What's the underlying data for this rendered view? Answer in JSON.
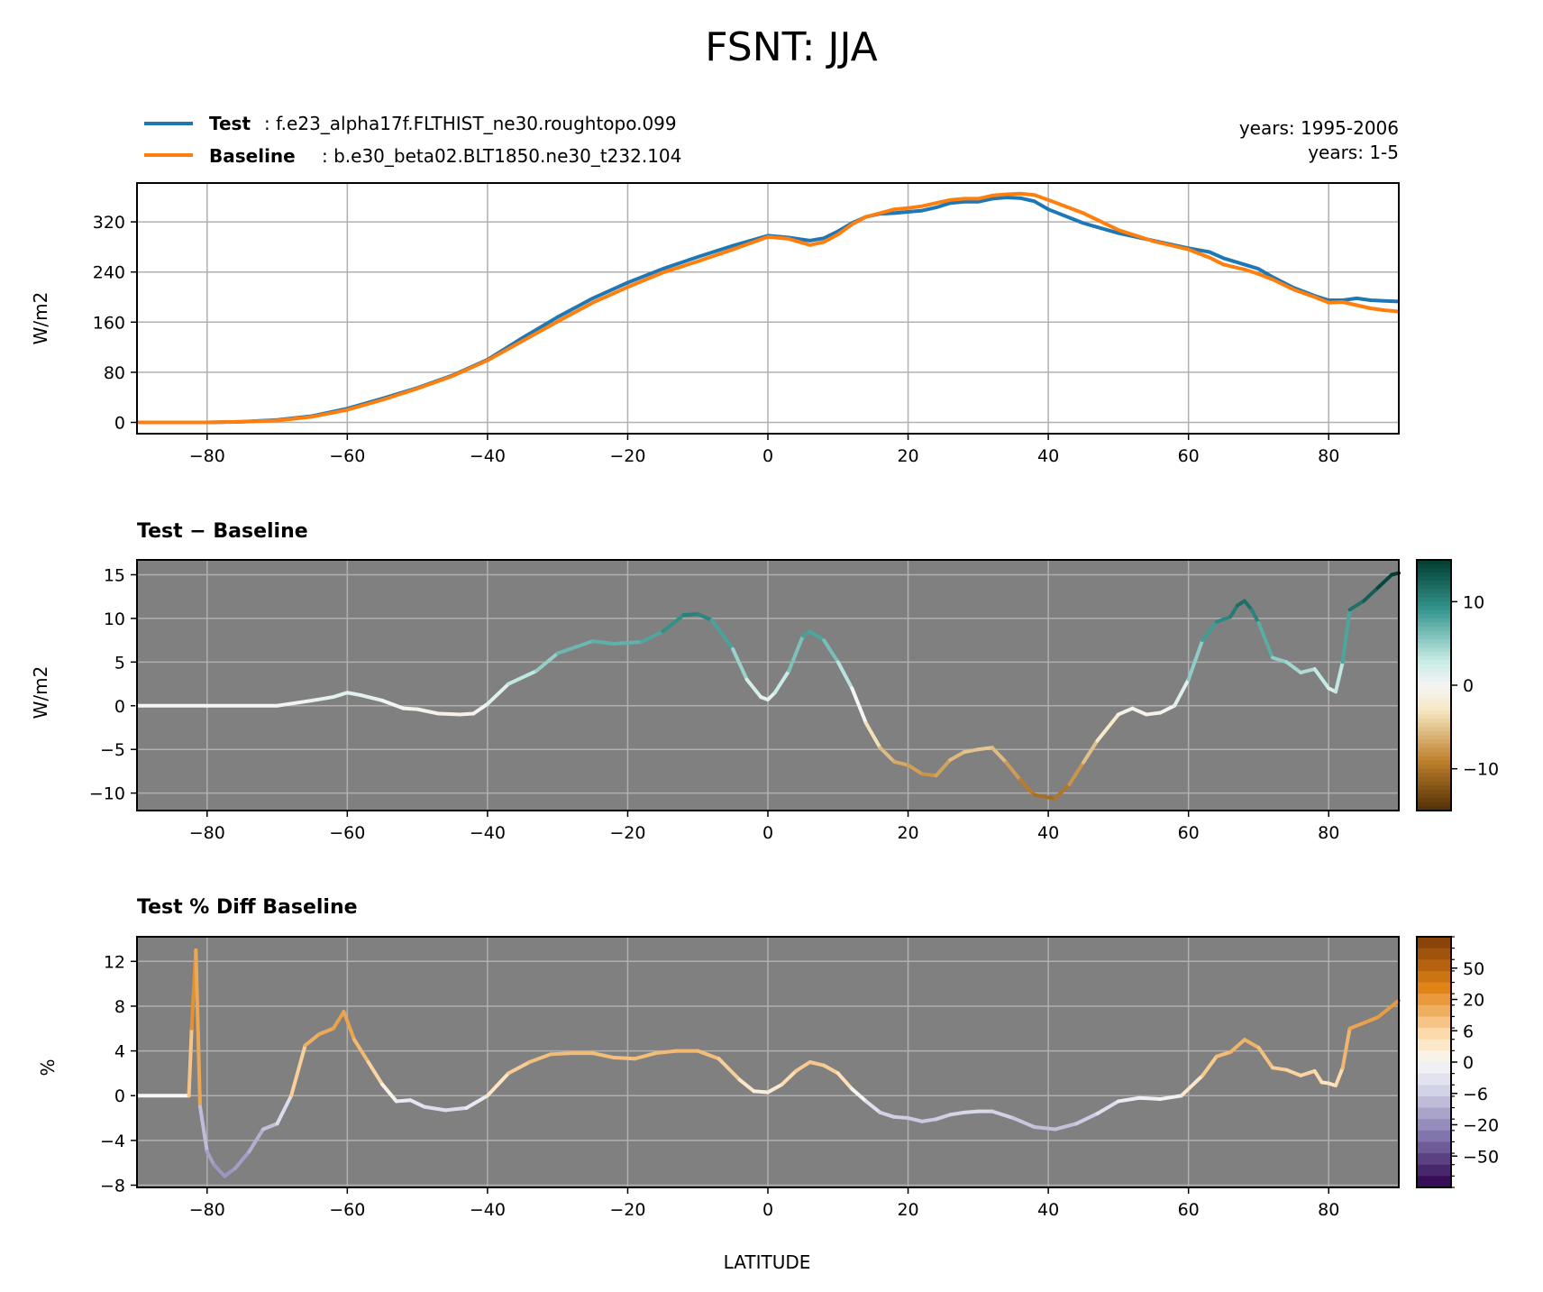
{
  "figure": {
    "title": "FSNT: JJA",
    "legend": {
      "test_label": "Test",
      "test_case": ": f.e23_alpha17f.FLTHIST_ne30.roughtopo.099",
      "base_label": "Baseline",
      "base_case": ": b.e30_beta02.BLT1850.ne30_t232.104",
      "test_years": "years: 1995-2006",
      "base_years": "years: 1-5"
    },
    "colors": {
      "test": "#1f77b4",
      "baseline": "#ff7f0e",
      "panel_bg": "#808080",
      "grid": "#b0b0b0"
    },
    "panel1": {
      "ylabel": "W/m2"
    },
    "panel2": {
      "title": "Test − Baseline",
      "ylabel": "W/m2"
    },
    "panel3": {
      "title": "Test % Diff Baseline",
      "ylabel": "%",
      "xlabel": "LATITUDE"
    }
  },
  "chart_data": [
    {
      "type": "line",
      "ylabel": "W/m2",
      "xlim": [
        -90,
        90
      ],
      "ylim": [
        -18,
        382
      ],
      "xticks": [
        -80,
        -60,
        -40,
        -20,
        0,
        20,
        40,
        60,
        80
      ],
      "yticks": [
        0,
        80,
        160,
        240,
        320
      ],
      "grid": true,
      "legend": "top-left",
      "series": [
        {
          "name": "Test",
          "color": "#1f77b4",
          "x": [
            -90,
            -80,
            -75,
            -70,
            -65,
            -60,
            -55,
            -50,
            -45,
            -40,
            -35,
            -30,
            -25,
            -20,
            -15,
            -10,
            -5,
            0,
            3,
            6,
            8,
            10,
            12,
            14,
            16,
            18,
            20,
            22,
            24,
            26,
            28,
            30,
            32,
            34,
            36,
            38,
            40,
            45,
            50,
            55,
            60,
            63,
            65,
            68,
            70,
            72,
            75,
            78,
            80,
            82,
            84,
            86,
            88,
            90
          ],
          "y": [
            0,
            0,
            1,
            4,
            10,
            22,
            38,
            55,
            75,
            100,
            135,
            168,
            198,
            223,
            245,
            264,
            282,
            298,
            295,
            290,
            294,
            305,
            318,
            328,
            333,
            334,
            336,
            338,
            343,
            350,
            352,
            352,
            357,
            359,
            358,
            353,
            340,
            318,
            302,
            290,
            278,
            272,
            262,
            252,
            245,
            232,
            215,
            202,
            195,
            195,
            198,
            195,
            194,
            193
          ]
        },
        {
          "name": "Baseline",
          "color": "#ff7f0e",
          "x": [
            -90,
            -80,
            -75,
            -70,
            -65,
            -60,
            -55,
            -50,
            -45,
            -40,
            -35,
            -30,
            -25,
            -20,
            -15,
            -10,
            -5,
            0,
            3,
            6,
            8,
            10,
            12,
            14,
            16,
            18,
            20,
            22,
            24,
            26,
            28,
            30,
            32,
            34,
            36,
            38,
            40,
            45,
            50,
            55,
            60,
            63,
            65,
            68,
            70,
            72,
            75,
            78,
            80,
            82,
            84,
            86,
            88,
            90
          ],
          "y": [
            0,
            0,
            1,
            3,
            9,
            20,
            36,
            54,
            74,
            99,
            130,
            161,
            191,
            216,
            239,
            257,
            276,
            296,
            293,
            283,
            288,
            300,
            316,
            328,
            334,
            340,
            342,
            345,
            350,
            355,
            357,
            357,
            362,
            364,
            365,
            363,
            355,
            334,
            307,
            289,
            276,
            263,
            252,
            244,
            237,
            228,
            212,
            200,
            191,
            192,
            187,
            182,
            179,
            177
          ]
        }
      ]
    },
    {
      "type": "line",
      "title": "Test − Baseline",
      "ylabel": "W/m2",
      "xlim": [
        -90,
        90
      ],
      "ylim": [
        -12,
        16.7
      ],
      "xticks": [
        -80,
        -60,
        -40,
        -20,
        0,
        20,
        40,
        60,
        80
      ],
      "yticks": [
        -10,
        -5,
        0,
        5,
        10,
        15
      ],
      "grid": true,
      "colormap": "BrBG",
      "clim": [
        -15,
        15
      ],
      "colorbar_ticks": [
        -10,
        0,
        10
      ],
      "x": [
        -90,
        -80,
        -70,
        -65,
        -62,
        -60,
        -58,
        -55,
        -52,
        -50,
        -47,
        -44,
        -42,
        -40,
        -37,
        -33,
        -30,
        -25,
        -22,
        -18,
        -15,
        -12,
        -10,
        -8,
        -5,
        -3,
        -1,
        0,
        1,
        3,
        5,
        6,
        8,
        10,
        12,
        14,
        16,
        18,
        20,
        22,
        24,
        26,
        28,
        30,
        32,
        34,
        36,
        38,
        40,
        41,
        43,
        45,
        47,
        50,
        52,
        54,
        56,
        58,
        60,
        62,
        64,
        66,
        67,
        68,
        69,
        70,
        72,
        74,
        76,
        78,
        80,
        81,
        82,
        83,
        85,
        87,
        89,
        90
      ],
      "y": [
        0,
        0,
        0,
        0.6,
        1,
        1.5,
        1.2,
        0.6,
        -0.3,
        -0.4,
        -0.9,
        -1,
        -0.9,
        0.2,
        2.5,
        4,
        6,
        7.4,
        7.1,
        7.3,
        8.5,
        10.4,
        10.5,
        9.8,
        6.5,
        3,
        1,
        0.7,
        1.5,
        4,
        8,
        8.5,
        7.5,
        5,
        2,
        -2,
        -4.8,
        -6.4,
        -6.8,
        -7.8,
        -8,
        -6.2,
        -5.3,
        -5,
        -4.8,
        -6.5,
        -8.5,
        -10.2,
        -10.5,
        -10.6,
        -9,
        -6.5,
        -4,
        -1,
        -0.3,
        -1,
        -0.8,
        0,
        3,
        7.5,
        9.6,
        10.2,
        11.5,
        12,
        11,
        9.5,
        5.5,
        5,
        3.8,
        4.2,
        2,
        1.6,
        5,
        11,
        12,
        13.5,
        15,
        15.2
      ]
    },
    {
      "type": "line",
      "title": "Test % Diff Baseline",
      "ylabel": "%",
      "xlabel": "LATITUDE",
      "xlim": [
        -90,
        90
      ],
      "ylim": [
        -8.2,
        14.2
      ],
      "xticks": [
        -80,
        -60,
        -40,
        -20,
        0,
        20,
        40,
        60,
        80
      ],
      "yticks": [
        -8,
        -4,
        0,
        4,
        8,
        12
      ],
      "grid": true,
      "colormap": "PuOr_r",
      "colorbar_ticks": [
        -50,
        -20,
        -6,
        0,
        6,
        20,
        50
      ],
      "x": [
        -90,
        -83,
        -82.6,
        -82.2,
        -81.6,
        -81,
        -80,
        -79,
        -77.5,
        -76,
        -74,
        -72,
        -70,
        -68,
        -66,
        -64,
        -62,
        -60.5,
        -59,
        -57,
        -55,
        -53,
        -51,
        -49,
        -46,
        -43,
        -40,
        -37,
        -34,
        -31,
        -28,
        -25,
        -22,
        -19,
        -16,
        -13,
        -10,
        -7,
        -4,
        -2,
        0,
        2,
        4,
        6,
        8,
        10,
        12,
        14,
        16,
        18,
        20,
        22,
        24,
        26,
        28,
        30,
        32,
        35,
        38,
        41,
        44,
        47,
        50,
        53,
        56,
        59,
        62,
        64,
        66,
        68,
        70,
        72,
        74,
        76,
        78,
        79,
        80,
        81,
        82,
        83,
        85,
        87,
        89,
        90
      ],
      "y": [
        0,
        0,
        0,
        6,
        13,
        -1,
        -5,
        -6.2,
        -7.2,
        -6.5,
        -5,
        -3,
        -2.5,
        0,
        4.5,
        5.5,
        6,
        7.5,
        5,
        3,
        1,
        -0.5,
        -0.4,
        -1,
        -1.3,
        -1.1,
        0,
        2,
        3,
        3.7,
        3.8,
        3.8,
        3.4,
        3.3,
        3.8,
        4,
        4,
        3.3,
        1.4,
        0.4,
        0.3,
        1,
        2.2,
        3,
        2.7,
        2,
        0.6,
        -0.5,
        -1.5,
        -1.9,
        -2,
        -2.3,
        -2.1,
        -1.7,
        -1.5,
        -1.4,
        -1.4,
        -2,
        -2.8,
        -3,
        -2.5,
        -1.6,
        -0.5,
        -0.2,
        -0.3,
        0,
        1.8,
        3.5,
        3.9,
        5,
        4.3,
        2.5,
        2.3,
        1.8,
        2.2,
        1.2,
        1.1,
        0.9,
        2.5,
        6,
        6.5,
        7,
        8,
        8.5
      ]
    }
  ]
}
